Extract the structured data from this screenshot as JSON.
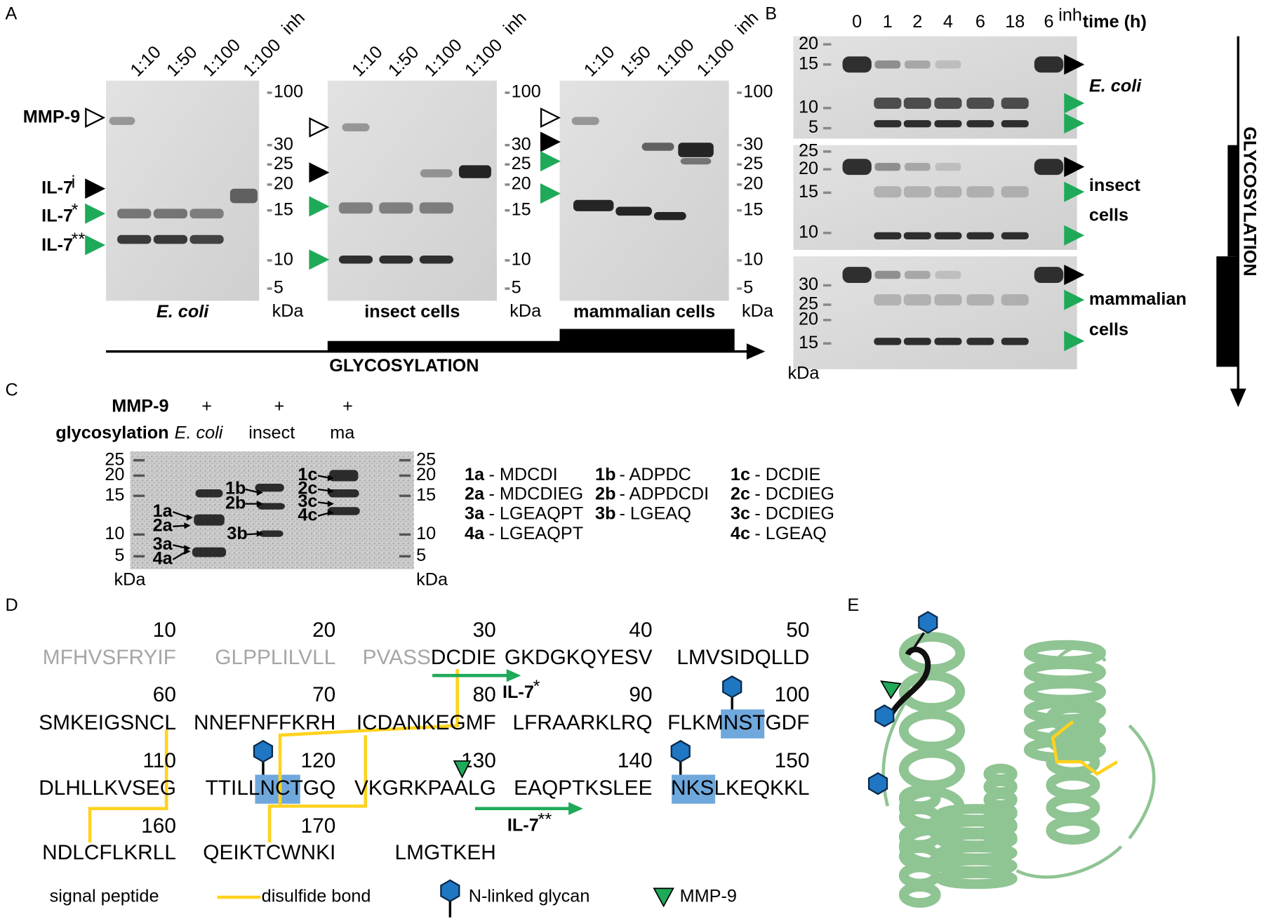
{
  "panel_labels": [
    "A",
    "B",
    "C",
    "D",
    "E"
  ],
  "panel_a": {
    "lanes": [
      "1:10",
      "1:50",
      "1:100",
      "1:100"
    ],
    "inhibitor_mark": "inh",
    "ladder": [
      "100",
      "30",
      "25",
      "20",
      "15",
      "10",
      "5"
    ],
    "unit": "kDa",
    "gels": [
      "E. coli",
      "insect cells",
      "mammalian cells"
    ],
    "markers": [
      {
        "label": "MMP-9"
      },
      {
        "label": "IL-7",
        "sup": "i"
      },
      {
        "label": "IL-7",
        "sup": "*"
      },
      {
        "label": "IL-7",
        "sup": "**"
      }
    ],
    "axis_label": "GLYCOSYLATION"
  },
  "panel_b": {
    "times": [
      "0",
      "1",
      "2",
      "4",
      "6",
      "18",
      "6"
    ],
    "inhibitor_mark": "inh",
    "time_label": "time (h)",
    "unit": "kDa",
    "axis_label": "GLYCOSYLATION",
    "gels": [
      {
        "ladder": [
          "20",
          "15",
          "10",
          "5"
        ],
        "name": [
          "E. coli"
        ]
      },
      {
        "ladder": [
          "25",
          "20",
          "15",
          "10"
        ],
        "name": [
          "insect",
          "cells"
        ]
      },
      {
        "ladder": [
          "30",
          "25",
          "20",
          "15"
        ],
        "name": [
          "mammalian",
          "cells"
        ]
      }
    ]
  },
  "panel_c": {
    "mmp9_label": "MMP-9",
    "plus": [
      "+",
      "+",
      "+"
    ],
    "glycosylation_label": "glycosylation",
    "sources": [
      "E. coli",
      "insect",
      "ma"
    ],
    "ladder_left": [
      "25",
      "20",
      "15",
      "10",
      "5"
    ],
    "ladder_right": [
      "25",
      "20",
      "15",
      "10",
      "5"
    ],
    "unit": "kDa",
    "band_labels": [
      "1a",
      "2a",
      "3a",
      "4a",
      "1b",
      "2b",
      "3b",
      "1c",
      "2c",
      "3c",
      "4c"
    ],
    "peptides": [
      [
        {
          "id": "1a",
          "seq": "- MDCDI"
        },
        {
          "id": "2a",
          "seq": "- MDCDIEG"
        },
        {
          "id": "3a",
          "seq": "- LGEAQPT"
        },
        {
          "id": "4a",
          "seq": "- LGEAQPT"
        }
      ],
      [
        {
          "id": "1b",
          "seq": "- ADPDC"
        },
        {
          "id": "2b",
          "seq": "- ADPDCDI"
        },
        {
          "id": "3b",
          "seq": "- LGEAQ"
        }
      ],
      [
        {
          "id": "1c",
          "seq": "- DCDIE"
        },
        {
          "id": "2c",
          "seq": "- DCDIEG"
        },
        {
          "id": "3c",
          "seq": "- DCDIEG"
        },
        {
          "id": "4c",
          "seq": "- LGEAQ"
        }
      ]
    ]
  },
  "panel_d": {
    "rows": [
      {
        "numbers": [
          "10",
          "20",
          "30",
          "40",
          "50"
        ],
        "blocks": [
          [
            {
              "text": "MFHVSFRYIF",
              "signal": true
            }
          ],
          [
            {
              "text": "GLPPLILVLL",
              "signal": true
            }
          ],
          [
            {
              "text": "PVASS",
              "signal": true
            },
            {
              "text": "DCDIE"
            }
          ],
          [
            {
              "text": "GKDGKQYESV"
            }
          ],
          [
            {
              "text": "LMVSIDQLLD"
            }
          ]
        ]
      },
      {
        "numbers": [
          "60",
          "70",
          "80",
          "90",
          "100"
        ],
        "blocks": [
          [
            {
              "text": "SMKEIGSNCL"
            }
          ],
          [
            {
              "text": "NNEFNFFKRH"
            }
          ],
          [
            {
              "text": "ICDANKEGMF"
            }
          ],
          [
            {
              "text": "LFRAARKLRQ"
            }
          ],
          [
            {
              "text": "FLKMNSTGDF"
            }
          ]
        ]
      },
      {
        "numbers": [
          "110",
          "120",
          "130",
          "140",
          "150"
        ],
        "blocks": [
          [
            {
              "text": "DLHLLKVSEG"
            }
          ],
          [
            {
              "text": "TTILLNCTGQ"
            }
          ],
          [
            {
              "text": "VKGRKPAALG"
            }
          ],
          [
            {
              "text": "EAQPTKSLEE"
            }
          ],
          [
            {
              "text": "NKSLKEQKKL"
            }
          ]
        ]
      },
      {
        "numbers": [
          "160",
          "170"
        ],
        "blocks": [
          [
            {
              "text": "NDLCFLKRLL"
            }
          ],
          [
            {
              "text": "QEIKTCWNKI"
            }
          ],
          [
            {
              "text": "LMGTKEH"
            }
          ]
        ]
      }
    ],
    "il7_star": {
      "label": "IL-7",
      "sup": "*"
    },
    "il7_double_star": {
      "label": "IL-7",
      "sup": "**"
    },
    "legend": [
      "signal peptide",
      "disulfide bond",
      "N-linked glycan",
      "MMP-9"
    ]
  }
}
